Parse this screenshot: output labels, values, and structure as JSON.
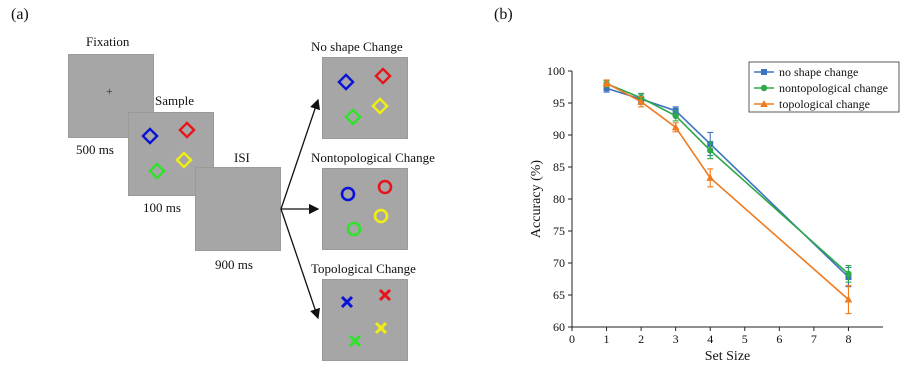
{
  "panel_a": {
    "label": "(a)",
    "fixation": {
      "title": "Fixation",
      "symbol": "+",
      "duration": "500 ms"
    },
    "sample": {
      "title": "Sample",
      "duration": "100 ms"
    },
    "isi": {
      "title": "ISI",
      "duration": "900 ms"
    },
    "tests": [
      {
        "title": "No shape Change"
      },
      {
        "title": "Nontopological Change"
      },
      {
        "title": "Topological Change"
      }
    ],
    "stimulus_colors": {
      "blue": "#0a12d8",
      "red": "#e8141c",
      "green": "#2fe22a",
      "yellow": "#f2ee12"
    }
  },
  "panel_b": {
    "label": "(b)"
  },
  "chart_data": {
    "type": "line",
    "title": "",
    "xlabel": "Set Size",
    "ylabel": "Accuracy (%)",
    "xlim": [
      0,
      9
    ],
    "ylim": [
      60,
      100
    ],
    "x_ticks": [
      "0",
      "1",
      "2",
      "3",
      "4",
      "5",
      "6",
      "7",
      "8"
    ],
    "y_ticks": [
      "60",
      "65",
      "70",
      "75",
      "80",
      "85",
      "90",
      "95",
      "100"
    ],
    "legend_position": "top-right",
    "series": [
      {
        "name": "no shape change",
        "color": "#3b73c0",
        "marker": "square",
        "x": [
          1,
          2,
          3,
          4,
          8
        ],
        "y": [
          97.3,
          95.6,
          93.8,
          88.6,
          67.8
        ],
        "err": [
          0.6,
          0.8,
          0.6,
          1.8,
          1.5
        ]
      },
      {
        "name": "nontopological change",
        "color": "#2ea84a",
        "marker": "circle",
        "x": [
          1,
          2,
          3,
          4,
          8
        ],
        "y": [
          98.0,
          95.8,
          93.0,
          87.6,
          68.3
        ],
        "err": [
          0.5,
          0.7,
          0.8,
          1.3,
          1.3
        ]
      },
      {
        "name": "topological change",
        "color": "#f07a1e",
        "marker": "triangle",
        "x": [
          1,
          2,
          3,
          4,
          8
        ],
        "y": [
          98.1,
          95.2,
          91.2,
          83.3,
          64.3
        ],
        "err": [
          0.5,
          0.8,
          0.7,
          1.4,
          2.2
        ]
      }
    ]
  }
}
